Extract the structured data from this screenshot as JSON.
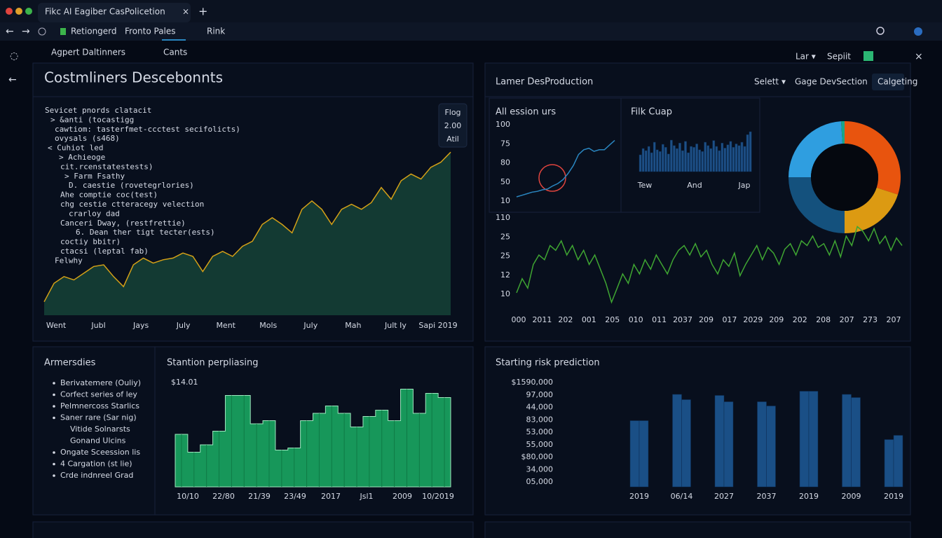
{
  "browser": {
    "tab_title": "Fikc AI Eagiber CasPolicetion",
    "nav": [
      "Retiongerd",
      "Fronto Pales",
      "Rink"
    ]
  },
  "toolbar": {
    "tabs": [
      "Agpert Daltinners",
      "Cants"
    ],
    "actions": [
      "Lar ▾",
      "Sepiit"
    ]
  },
  "panel_right": {
    "title": "Lamer DesProduction",
    "buttons": [
      "Selett ▾",
      "Gage DevSection",
      "Calgeting"
    ]
  },
  "list_panel": {
    "title": "Armersdies",
    "items": [
      {
        "text": "Berivatemere (Ouliy)"
      },
      {
        "text": "Corfect series of ley"
      },
      {
        "text": "Pelmnercoss Starlics"
      },
      {
        "text": "Saner rare (Sar nig)"
      },
      {
        "text": "Vitide Solnarsts",
        "indent": true
      },
      {
        "text": "Gonand Ulcins",
        "indent": true
      },
      {
        "text": "Ongate Sceession lis"
      },
      {
        "text": "4 Cargation (st lie)"
      },
      {
        "text": "Crde indnreel Grad"
      }
    ]
  },
  "chart_data": [
    {
      "type": "area",
      "title": "Costmliners Descebonnts",
      "color": "#133a33",
      "line_color": "#d4a017",
      "ylim": [
        0,
        100
      ],
      "values": [
        8,
        19,
        23,
        21,
        25,
        29,
        30,
        23,
        17,
        30,
        34,
        31,
        33,
        34,
        37,
        35,
        26,
        35,
        38,
        35,
        41,
        44,
        54,
        58,
        54,
        49,
        63,
        68,
        63,
        54,
        63,
        66,
        63,
        67,
        76,
        69,
        80,
        84,
        81,
        88,
        91,
        97
      ],
      "x_labels": [
        "Went",
        "Jubl",
        "Jays",
        "July",
        "Ment",
        "Mols",
        "July",
        "Mah",
        "Jult Iy",
        "Sapi 2019"
      ],
      "legend_box": [
        "Flog",
        "2.00",
        "Atil"
      ],
      "code_lines": [
        {
          "text": "Sevicet pnords clatacit",
          "color": "#e8e070"
        },
        {
          "text": "> &anti (tocastigg",
          "color": "#e0e0e0"
        },
        {
          "text": "cawtiom: tasterfmet-ccctest secifolicts)",
          "color": "#d58cff"
        },
        {
          "text": "ovysals (s468)",
          "color": "#e0e0e0"
        },
        {
          "text": "< Cuhiot led",
          "color": "#6ab0ff"
        },
        {
          "text": "> Achieoge",
          "color": "#e8e070"
        },
        {
          "text": "cit.rcenstatestests)",
          "color": "#e0e0e0"
        },
        {
          "text": "> Farm Fsathy",
          "color": "#e8e070"
        },
        {
          "text": "D. caestie (rovetegrlories)",
          "color": "#e0e0e0"
        },
        {
          "text": "Ahe comptie coc(test)",
          "color": "#ffa040"
        },
        {
          "text": "chg cestie ctteracegy velection",
          "color": "#7ed957"
        },
        {
          "text": "crarloy dad",
          "color": "#e0e0e0"
        },
        {
          "text": "Canceri Dway, (restfrettie)",
          "color": "#e0e0e0"
        },
        {
          "text": "6. Dean ther tigt tecter(ests)",
          "color": "#e0e0e0"
        },
        {
          "text": "coctiy bbitr)",
          "color": "#e8e070"
        },
        {
          "text": "ctacsi (leptal fab)",
          "color": "#6ab0ff"
        },
        {
          "text": "Felwhy",
          "color": "#e8e070"
        }
      ]
    },
    {
      "type": "line",
      "title": "All ession urs",
      "color": "#2a86c0",
      "ylim": [
        0,
        100
      ],
      "values": [
        8,
        10,
        12,
        14,
        15,
        17,
        18,
        22,
        25,
        30,
        38,
        48,
        62,
        68,
        70,
        66,
        68,
        68,
        74,
        80
      ],
      "y_labels": [
        "100",
        "75",
        "80",
        "50",
        "10"
      ]
    },
    {
      "type": "bar",
      "title": "Filk Cuap",
      "color": "#1d4f86",
      "ylim": [
        0,
        100
      ],
      "values": [
        40,
        55,
        50,
        60,
        45,
        70,
        52,
        48,
        65,
        58,
        42,
        75,
        62,
        55,
        68,
        50,
        72,
        45,
        60,
        58,
        66,
        52,
        48,
        70,
        62,
        55,
        74,
        60,
        50,
        68,
        56,
        64,
        72,
        58,
        66,
        62,
        70,
        60,
        88,
        95
      ],
      "x_labels": [
        "Tew",
        "And",
        "Jap"
      ]
    },
    {
      "type": "pie",
      "values": [
        30,
        20,
        25,
        24,
        1
      ],
      "colors": [
        "#e8540e",
        "#dc9a12",
        "#14517d",
        "#2f9ee0",
        "#1aa58a"
      ]
    },
    {
      "type": "line",
      "color": "#3fa532",
      "ylim": [
        0,
        100
      ],
      "values": [
        20,
        35,
        25,
        50,
        60,
        55,
        70,
        65,
        75,
        60,
        70,
        55,
        65,
        50,
        60,
        45,
        30,
        10,
        25,
        40,
        30,
        50,
        40,
        55,
        45,
        60,
        50,
        40,
        55,
        65,
        70,
        60,
        72,
        58,
        65,
        50,
        40,
        55,
        48,
        62,
        38,
        50,
        60,
        70,
        55,
        68,
        62,
        50,
        66,
        72,
        60,
        75,
        70,
        80,
        68,
        72,
        60,
        75,
        58,
        80,
        70,
        90,
        85,
        75,
        88,
        72,
        80,
        65,
        78,
        70
      ],
      "y_labels": [
        "110",
        "25",
        "25",
        "12",
        "10"
      ],
      "x_labels": [
        "000",
        "2011",
        "202",
        "001",
        "205",
        "010",
        "011",
        "2037",
        "209",
        "017",
        "2029",
        "209",
        "202",
        "208",
        "207",
        "273",
        "207"
      ]
    },
    {
      "type": "step_area",
      "title": "Stantion perpliasing",
      "color": "#17975a",
      "line_color": "#9fe8bf",
      "ylim": [
        0,
        100
      ],
      "annotation": "$14.01",
      "values": [
        50,
        33,
        40,
        53,
        87,
        87,
        60,
        63,
        35,
        37,
        63,
        70,
        77,
        70,
        57,
        67,
        73,
        63,
        93,
        70,
        89,
        85
      ],
      "x_labels": [
        "10/10",
        "22/80",
        "21/39",
        "23/49",
        "2017",
        "Jsl1",
        "2009",
        "10/2019"
      ]
    },
    {
      "type": "bar",
      "title": "Starting risk prediction",
      "color": "#1a4f86",
      "ylim": [
        0,
        100
      ],
      "values": [
        63,
        63,
        88,
        83,
        87,
        81,
        81,
        77,
        91,
        91,
        88,
        85,
        45,
        49
      ],
      "y_labels": [
        "$1590,000",
        "97,000",
        "44,000",
        "83,000",
        "53,000",
        "55,000",
        "$80,000",
        "34,000",
        "05,000"
      ],
      "x_labels": [
        "2019",
        "06/14",
        "2027",
        "2037",
        "2019",
        "2009",
        "2019"
      ]
    }
  ]
}
